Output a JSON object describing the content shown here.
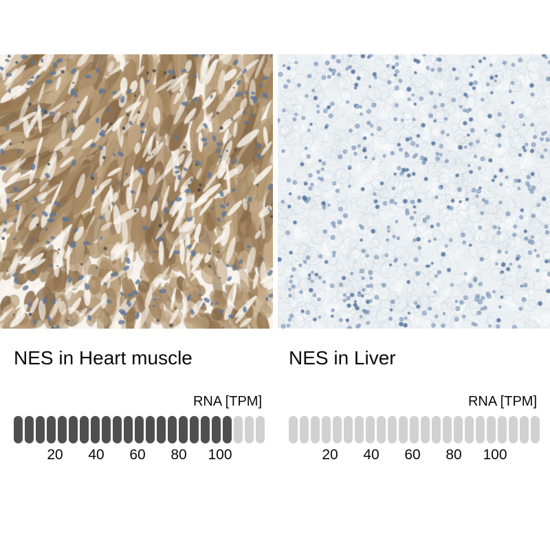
{
  "panels": [
    {
      "caption": "NES in Heart muscle",
      "rna_axis_label": "RNA [TPM]",
      "image": {
        "name": "ihc-heart-muscle-image",
        "description": "Immunohistochemistry micrograph of heart muscle: brown DAB-stained elongated cardiac muscle fibers with white interstitial gaps and scattered blue nuclei",
        "palette": {
          "background": "#f7f3ec",
          "fiber_browns": [
            "#c7ad8b",
            "#b69b76",
            "#a58762",
            "#93754f",
            "#bda27f",
            "#876a4a"
          ],
          "rim": "#6f5940",
          "gap_white": "#faf7f1",
          "nucleus_blue": "#5e7697",
          "dark_speck": "#39424e"
        }
      },
      "bar": {
        "total_segments": 23,
        "filled_segments": 20,
        "tpm_per_segment": 5,
        "filled_color": "#4f4f4f",
        "empty_color": "#d1d1d1"
      },
      "ticks": [
        20,
        40,
        60,
        80,
        100
      ]
    },
    {
      "caption": "NES in Liver",
      "rna_axis_label": "RNA [TPM]",
      "image": {
        "name": "ihc-liver-image",
        "description": "Immunohistochemistry micrograph of liver: negative staining, pale blue-gray hepatocyte plates with faint cell membranes and scattered round blue nuclei",
        "palette": {
          "background": "#edf1f4",
          "membrane": "#bcc8d0",
          "speckle": "#c9d4dc",
          "highlight": "#f7f9fa",
          "nucleus_fill": "#9db3cf",
          "nucleus_ring": "#6d89ad",
          "nucleus_dark": "#54719b"
        }
      },
      "bar": {
        "total_segments": 23,
        "filled_segments": 0,
        "tpm_per_segment": 5,
        "filled_color": "#4f4f4f",
        "empty_color": "#d1d1d1"
      },
      "ticks": [
        20,
        40,
        60,
        80,
        100
      ]
    }
  ],
  "chart_data": [
    {
      "type": "bar",
      "title": "NES in Heart muscle",
      "unit_label": "RNA [TPM]",
      "segments_total": 23,
      "segments_filled": 20,
      "tpm_per_segment": 5,
      "value_tpm_approx": 100,
      "x_ticks": [
        20,
        40,
        60,
        80,
        100
      ],
      "x_range": [
        0,
        115
      ],
      "grid": false,
      "filled_color": "#4f4f4f",
      "empty_color": "#d1d1d1"
    },
    {
      "type": "bar",
      "title": "NES in Liver",
      "unit_label": "RNA [TPM]",
      "segments_total": 23,
      "segments_filled": 0,
      "tpm_per_segment": 5,
      "value_tpm_approx": 0,
      "x_ticks": [
        20,
        40,
        60,
        80,
        100
      ],
      "x_range": [
        0,
        115
      ],
      "grid": false,
      "filled_color": "#4f4f4f",
      "empty_color": "#d1d1d1"
    }
  ]
}
